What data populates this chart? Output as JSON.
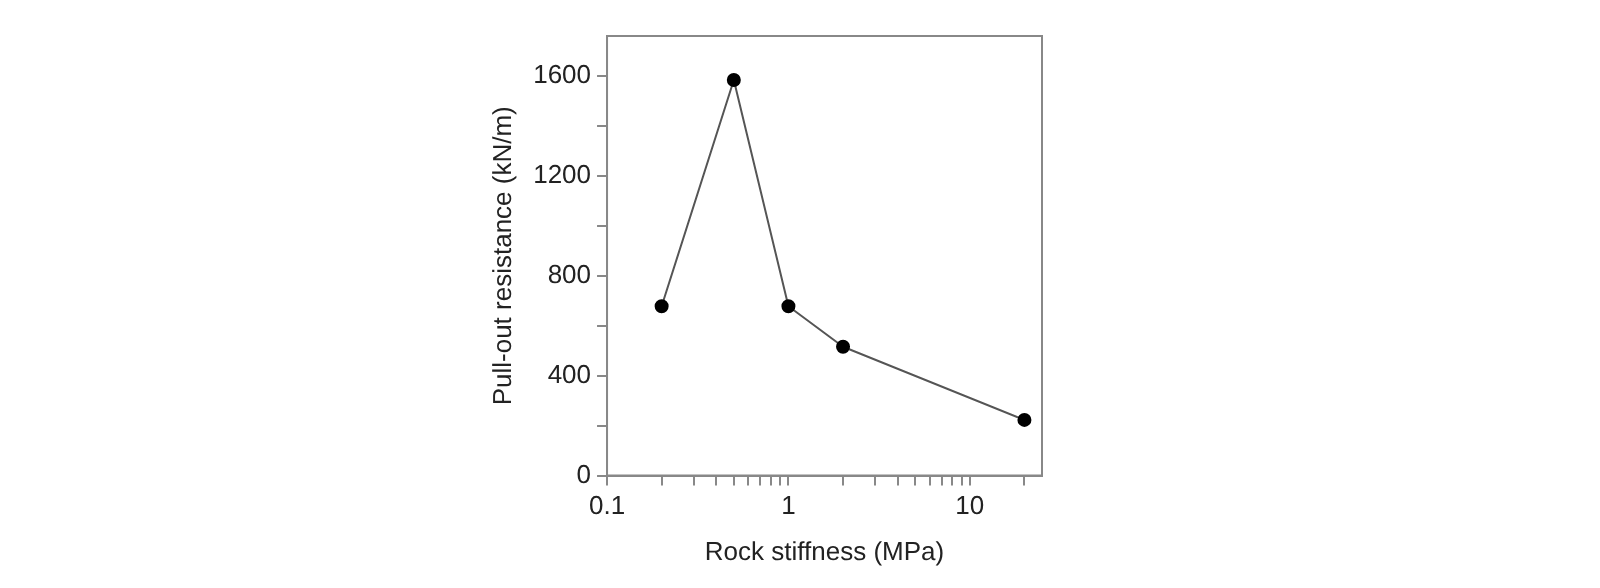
{
  "chart_data": {
    "type": "line",
    "xlabel": "Rock stiffness (MPa)",
    "ylabel": "Pull-out resistance (kN/m)",
    "x": [
      0.2,
      0.5,
      1,
      2,
      20
    ],
    "series": [
      {
        "color": "#000000",
        "values": [
          678,
          1584,
          678,
          516,
          223
        ]
      }
    ],
    "log": "x",
    "xlim": [
      0.1,
      25
    ],
    "xticks": [
      0.1,
      {
        "value": 0.2,
        "label": null
      },
      {
        "value": 0.3,
        "label": null
      },
      {
        "value": 0.4,
        "label": null
      },
      {
        "value": 0.5,
        "label": null
      },
      {
        "value": 0.6,
        "label": null
      },
      {
        "value": 0.7,
        "label": null
      },
      {
        "value": 0.8,
        "label": null
      },
      {
        "value": 0.9,
        "label": null
      },
      1,
      {
        "value": 2,
        "label": null
      },
      {
        "value": 3,
        "label": null
      },
      {
        "value": 4,
        "label": null
      },
      {
        "value": 5,
        "label": null
      },
      {
        "value": 6,
        "label": null
      },
      {
        "value": 7,
        "label": null
      },
      {
        "value": 8,
        "label": null
      },
      {
        "value": 9,
        "label": null
      },
      10,
      {
        "value": 20,
        "label": null
      }
    ],
    "ylim": [
      0,
      1760
    ],
    "yticks": [
      0,
      {
        "value": 200,
        "label": null
      },
      400,
      {
        "value": 600,
        "label": null
      },
      800,
      {
        "value": 1000,
        "label": null
      },
      1200,
      {
        "value": 1400,
        "label": null
      },
      1600
    ],
    "grid": false,
    "legend": false,
    "marker": "circle",
    "line_style": "solid"
  }
}
